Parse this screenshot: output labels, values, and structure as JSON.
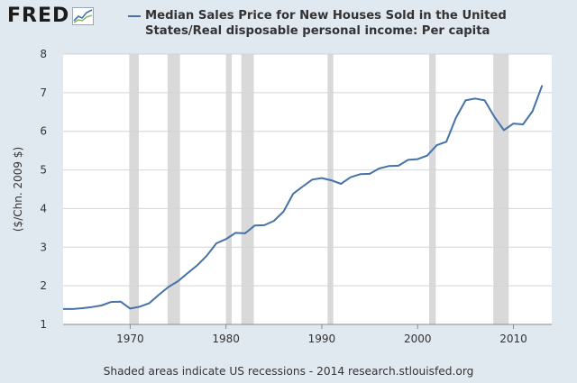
{
  "logo": {
    "text": "FRED",
    "icon": "trend-chart-icon"
  },
  "legend": {
    "line1": "Median Sales Price for New Houses Sold in the United",
    "line2": "States/Real disposable personal income: Per capita"
  },
  "footer": {
    "text": "Shaded areas indicate US recessions - 2014 research.stlouisfed.org"
  },
  "colors": {
    "line": "#4572a7",
    "recession": "#d9d9d9",
    "plot_bg": "#ffffff",
    "page_bg": "#e1e9f0"
  },
  "chart_data": {
    "type": "line",
    "title": "Median Sales Price for New Houses Sold in the United States/Real disposable personal income: Per capita",
    "xlabel": "",
    "ylabel": "($/Chn. 2009 $)",
    "xlim": [
      1963,
      2014
    ],
    "ylim": [
      1,
      8
    ],
    "grid": true,
    "legend_position": "top",
    "x_ticks": [
      1970,
      1980,
      1990,
      2000,
      2010
    ],
    "y_ticks": [
      1,
      2,
      3,
      4,
      5,
      6,
      7,
      8
    ],
    "recessions": [
      [
        1969.9,
        1970.9
      ],
      [
        1973.9,
        1975.2
      ],
      [
        1980.0,
        1980.6
      ],
      [
        1981.6,
        1982.9
      ],
      [
        1990.6,
        1991.2
      ],
      [
        2001.2,
        2001.9
      ],
      [
        2007.9,
        2009.5
      ]
    ],
    "series": [
      {
        "name": "Median Sales Price for New Houses Sold in the United States/Real disposable personal income: Per capita",
        "x": [
          1963,
          1964,
          1965,
          1966,
          1967,
          1968,
          1969,
          1970,
          1971,
          1972,
          1973,
          1974,
          1975,
          1976,
          1977,
          1978,
          1979,
          1980,
          1981,
          1982,
          1983,
          1984,
          1985,
          1986,
          1987,
          1988,
          1989,
          1990,
          1991,
          1992,
          1993,
          1994,
          1995,
          1996,
          1997,
          1998,
          1999,
          2000,
          2001,
          2002,
          2003,
          2004,
          2005,
          2006,
          2007,
          2008,
          2009,
          2010,
          2011,
          2012,
          2013
        ],
        "values": [
          1.4,
          1.4,
          1.42,
          1.45,
          1.49,
          1.58,
          1.59,
          1.41,
          1.46,
          1.55,
          1.77,
          1.97,
          2.12,
          2.33,
          2.53,
          2.78,
          3.1,
          3.21,
          3.37,
          3.36,
          3.56,
          3.57,
          3.68,
          3.92,
          4.38,
          4.57,
          4.75,
          4.79,
          4.73,
          4.64,
          4.81,
          4.89,
          4.9,
          5.04,
          5.1,
          5.11,
          5.26,
          5.28,
          5.37,
          5.64,
          5.73,
          6.35,
          6.8,
          6.85,
          6.8,
          6.38,
          6.03,
          6.2,
          6.18,
          6.52,
          7.19
        ]
      }
    ]
  }
}
